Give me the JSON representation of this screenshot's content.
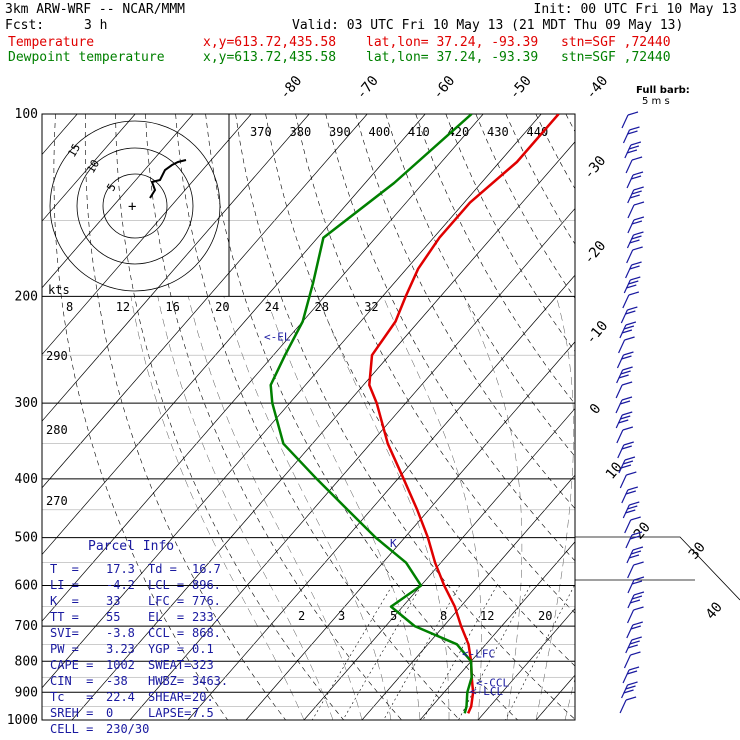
{
  "header": {
    "model": "3km ARW-WRF -- NCAR/MMM",
    "init": "Init: 00 UTC Fri 10 May 13",
    "fcst_label": "Fcst:",
    "fcst_value": "3 h",
    "valid": "Valid: 03 UTC Fri 10 May 13 (21 MDT Thu 09 May 13)",
    "temp_label": "Temperature",
    "dew_label": "Dewpoint temperature",
    "xy": "x,y=613.72,435.58",
    "latlon": "lat,lon= 37.24, -93.39",
    "stn": "stn=SGF ,72440",
    "barb_title": "Full barb:",
    "barb_units": "5 m s",
    "colors": {
      "temperature": "#e00000",
      "dewpoint": "#008000",
      "blue": "#1a1aa0"
    }
  },
  "chart_data": {
    "type": "line",
    "title": "",
    "ylabel": "",
    "pressure_levels": [
      100,
      200,
      300,
      400,
      500,
      600,
      700,
      800,
      900,
      1000
    ],
    "isotherm_labels_top": [
      "-80",
      "-70",
      "-60",
      "-50",
      "-40"
    ],
    "isotherm_labels_right": [
      "-30",
      "-20",
      "-10",
      "0",
      "10",
      "20",
      "30",
      "40"
    ],
    "theta_labels": [
      "370",
      "380",
      "390",
      "400",
      "410",
      "420",
      "430",
      "440"
    ],
    "theta_labels_left": [
      "290",
      "280",
      "270"
    ],
    "mixing_ratio_labels": [
      "2",
      "3",
      "5",
      "8",
      "12",
      "20"
    ],
    "hodo_ticks": [
      "8",
      "12",
      "16",
      "20",
      "24",
      "28",
      "32"
    ],
    "hodo_unit": "kts",
    "hodo_ring_labels": [
      "5",
      "10",
      "15"
    ],
    "level_markers": [
      {
        "label": "<-EL",
        "p": 233
      },
      {
        "label": "<-LFC",
        "p": 776
      },
      {
        "label": "<-CCL",
        "p": 868
      },
      {
        "label": "<-LCL",
        "p": 896
      },
      {
        "label": "K",
        "p": 510
      }
    ],
    "series": [
      {
        "name": "Temperature",
        "points": [
          [
            100,
            -57
          ],
          [
            120,
            -57
          ],
          [
            140,
            -59
          ],
          [
            160,
            -59
          ],
          [
            180,
            -58
          ],
          [
            200,
            -56
          ],
          [
            220,
            -54
          ],
          [
            250,
            -53
          ],
          [
            280,
            -49
          ],
          [
            300,
            -45
          ],
          [
            350,
            -37
          ],
          [
            400,
            -29
          ],
          [
            450,
            -22
          ],
          [
            500,
            -16
          ],
          [
            550,
            -11
          ],
          [
            600,
            -6
          ],
          [
            650,
            -1
          ],
          [
            700,
            3
          ],
          [
            750,
            7
          ],
          [
            800,
            10
          ],
          [
            850,
            12.5
          ],
          [
            900,
            15
          ],
          [
            950,
            16.8
          ],
          [
            975,
            17.3
          ]
        ]
      },
      {
        "name": "Dewpoint temperature",
        "points": [
          [
            100,
            -72
          ],
          [
            130,
            -75
          ],
          [
            160,
            -79
          ],
          [
            190,
            -74
          ],
          [
            220,
            -70
          ],
          [
            250,
            -68
          ],
          [
            280,
            -66
          ],
          [
            300,
            -63
          ],
          [
            350,
            -55
          ],
          [
            400,
            -44
          ],
          [
            450,
            -34
          ],
          [
            500,
            -25
          ],
          [
            550,
            -16
          ],
          [
            600,
            -10
          ],
          [
            650,
            -12
          ],
          [
            700,
            -5
          ],
          [
            750,
            5
          ],
          [
            800,
            10
          ],
          [
            850,
            12.5
          ],
          [
            900,
            14
          ],
          [
            950,
            16
          ],
          [
            975,
            16.7
          ]
        ]
      }
    ]
  },
  "parcel": {
    "title": "Parcel Info",
    "rows": [
      [
        "T  =",
        "17.3",
        "Td =",
        "16.7"
      ],
      [
        "LI =",
        "-4.2",
        "LCL =",
        "896."
      ],
      [
        "K  =",
        "33",
        "LFC =",
        "776."
      ],
      [
        "TT =",
        "55",
        "EL  =",
        "233."
      ],
      [
        "SVI=",
        "-3.8",
        "CCL =",
        "868."
      ],
      [
        "PW =",
        "3.23",
        "YGP =",
        "0.1"
      ],
      [
        "CAPE =",
        "1002",
        "SWEAT=",
        "323"
      ],
      [
        "CIN  =",
        "-38",
        "HWBZ=",
        "3463."
      ],
      [
        "Tc   =",
        "22.4",
        "SHEAR=",
        "20."
      ],
      [
        "SREH =",
        "0",
        "LAPSE=",
        "7.5"
      ],
      [
        "CELL =",
        "230/30",
        "",
        ""
      ]
    ]
  }
}
